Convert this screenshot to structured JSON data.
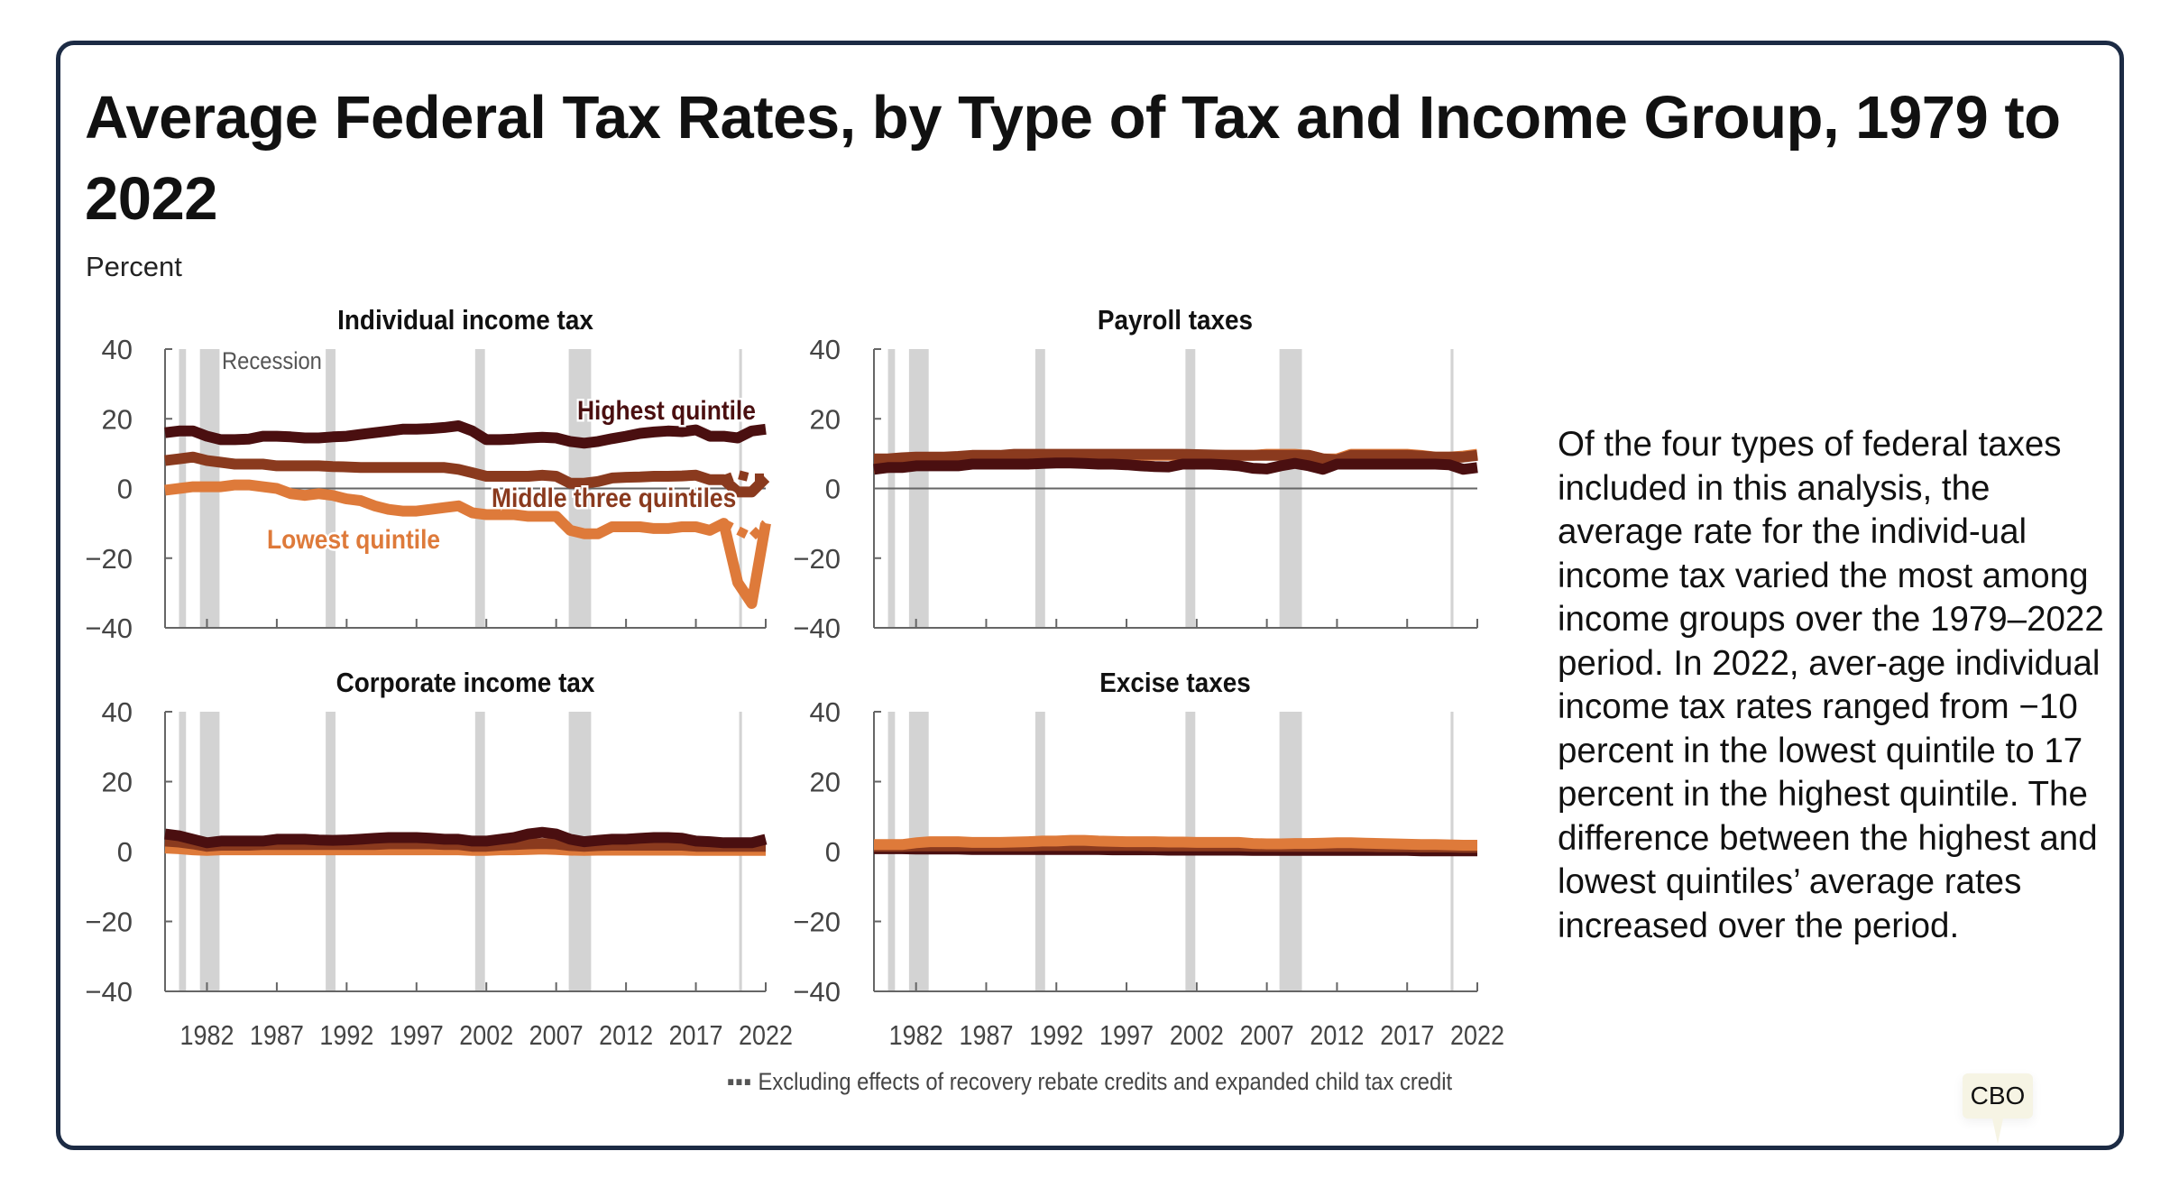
{
  "title": "Average Federal Tax Rates, by Type of Tax and Income Group, 1979 to 2022",
  "unit_label": "Percent",
  "recession_label": "Recession",
  "footnote_marker": "▪▪▪",
  "footnote": "Excluding effects of recovery rebate credits and expanded child tax credit",
  "side_text": "Of the four types of federal taxes included in this analysis, the average rate for the individ-ual income tax varied the most among income groups over the 1979–2022 period. In 2022, aver-age individual income tax rates ranged from −10 percent in the lowest quintile to 17 percent in the highest quintile. The difference between the highest and lowest quintiles’ average rates increased over the period.",
  "badge": "CBO",
  "colors": {
    "highest": "#4a0f10",
    "middle": "#8a3a1e",
    "lowest": "#de7a3a",
    "recession": "#d3d3d3",
    "axis": "#666666"
  },
  "chart_data": [
    {
      "type": "line",
      "title": "Individual income tax",
      "ylim": [
        -40,
        40
      ],
      "yticks": [
        "40",
        "20",
        "0",
        "−20",
        "−40"
      ],
      "xticks": [
        "1982",
        "1987",
        "1992",
        "1997",
        "2002",
        "2007",
        "2012",
        "2017",
        "2022"
      ],
      "x_start": 1979,
      "recessions": [
        [
          1980.0,
          1980.5
        ],
        [
          1981.5,
          1982.9
        ],
        [
          1990.5,
          1991.2
        ],
        [
          2001.2,
          2001.9
        ],
        [
          2007.9,
          2009.5
        ],
        [
          2020.1,
          2020.3
        ]
      ],
      "series": [
        {
          "name": "Lowest quintile",
          "key": "lowest",
          "values": [
            -0.5,
            0,
            0.5,
            0.5,
            0.5,
            1,
            1,
            0.5,
            0,
            -1.5,
            -2,
            -1.5,
            -2,
            -3,
            -3.5,
            -5,
            -6,
            -6.5,
            -6.5,
            -6,
            -5.5,
            -5,
            -7,
            -7.5,
            -7.5,
            -7.5,
            -8,
            -8,
            -8,
            -12,
            -13,
            -13,
            -11,
            -11,
            -11,
            -11.5,
            -11.5,
            -11,
            -11,
            -12,
            -10,
            -27,
            -33,
            -10
          ]
        },
        {
          "name": "Middle three quintiles",
          "key": "middle",
          "values": [
            8,
            8.5,
            9,
            8,
            7.5,
            7,
            7,
            7,
            6.5,
            6.5,
            6.5,
            6.5,
            6.3,
            6.2,
            6,
            6,
            6,
            6,
            6,
            6,
            6,
            5.5,
            4.5,
            3.5,
            3.5,
            3.5,
            3.5,
            3.8,
            3.5,
            1.5,
            1.5,
            2,
            3,
            3.2,
            3.3,
            3.5,
            3.5,
            3.6,
            3.8,
            2.5,
            2.5,
            -1,
            -1,
            3
          ]
        },
        {
          "name": "Highest quintile",
          "key": "highest",
          "values": [
            16,
            16.5,
            16.5,
            15,
            14,
            14,
            14.2,
            15,
            15,
            14.8,
            14.5,
            14.5,
            14.8,
            15,
            15.5,
            16,
            16.5,
            17,
            17,
            17.2,
            17.5,
            18,
            16.5,
            14,
            14,
            14.2,
            14.5,
            14.7,
            14.5,
            13.5,
            13,
            13.5,
            14.3,
            15,
            15.8,
            16.2,
            16.5,
            16.3,
            16.8,
            15,
            15,
            14.5,
            16.5,
            17
          ]
        }
      ],
      "excluding_series": [
        {
          "key": "middle",
          "years": [
            2019,
            2020,
            2021,
            2022
          ],
          "values": [
            2.5,
            4,
            3,
            3
          ]
        },
        {
          "key": "lowest",
          "years": [
            2019,
            2020,
            2021,
            2022
          ],
          "values": [
            -10,
            -12,
            -14,
            -10
          ]
        }
      ]
    },
    {
      "type": "line",
      "title": "Payroll taxes",
      "ylim": [
        -40,
        40
      ],
      "yticks": [
        "40",
        "20",
        "0",
        "−20",
        "−40"
      ],
      "xticks": [
        "1982",
        "1987",
        "1992",
        "1997",
        "2002",
        "2007",
        "2012",
        "2017",
        "2022"
      ],
      "x_start": 1979,
      "recessions": [
        [
          1980.0,
          1980.5
        ],
        [
          1981.5,
          1982.9
        ],
        [
          1990.5,
          1991.2
        ],
        [
          2001.2,
          2001.9
        ],
        [
          2007.9,
          2009.5
        ],
        [
          2020.1,
          2020.3
        ]
      ],
      "series": [
        {
          "key": "lowest",
          "values": [
            6,
            6,
            6.5,
            7,
            7,
            7.2,
            7.5,
            7.5,
            7.8,
            8,
            8,
            8.3,
            8.5,
            8.5,
            8.8,
            9,
            9,
            9.3,
            9.3,
            9.5,
            9.5,
            9.5,
            9.5,
            9.5,
            9.5,
            9.5,
            9.5,
            9.5,
            9.8,
            9.8,
            9.8,
            9.5,
            8.5,
            8.5,
            9.8,
            9.8,
            9.8,
            9.8,
            9.8,
            9.5,
            9,
            9,
            9.3,
            9.8
          ]
        },
        {
          "key": "middle",
          "values": [
            8.5,
            8.5,
            8.8,
            9,
            9,
            9,
            9.2,
            9.5,
            9.5,
            9.5,
            9.8,
            9.8,
            9.8,
            9.8,
            9.8,
            9.8,
            9.8,
            9.8,
            9.8,
            9.8,
            9.8,
            9.8,
            9.8,
            9.7,
            9.6,
            9.5,
            9.5,
            9.5,
            9.5,
            9.5,
            9.5,
            9.5,
            8.5,
            8.2,
            9.5,
            9.5,
            9.5,
            9.5,
            9.5,
            9.3,
            9,
            9,
            9,
            9.5
          ]
        },
        {
          "key": "highest",
          "values": [
            5.5,
            6,
            6,
            6.5,
            6.5,
            6.5,
            6.5,
            7,
            7,
            7,
            7,
            7,
            7.2,
            7.3,
            7.3,
            7.2,
            7,
            7,
            6.8,
            6.5,
            6.3,
            6.2,
            7,
            7,
            7,
            6.8,
            6.5,
            5.8,
            5.6,
            6.5,
            7.2,
            6.5,
            5.5,
            7,
            7,
            7,
            7,
            7,
            7,
            7,
            7,
            6.8,
            5.5,
            6
          ]
        }
      ]
    },
    {
      "type": "line",
      "title": "Corporate income tax",
      "ylim": [
        -40,
        40
      ],
      "yticks": [
        "40",
        "20",
        "0",
        "−20",
        "−40"
      ],
      "xticks": [
        "1982",
        "1987",
        "1992",
        "1997",
        "2002",
        "2007",
        "2012",
        "2017",
        "2022"
      ],
      "x_start": 1979,
      "recessions": [
        [
          1980.0,
          1980.5
        ],
        [
          1981.5,
          1982.9
        ],
        [
          1990.5,
          1991.2
        ],
        [
          2001.2,
          2001.9
        ],
        [
          2007.9,
          2009.5
        ],
        [
          2020.1,
          2020.3
        ]
      ],
      "series": [
        {
          "key": "lowest",
          "values": [
            1,
            0.8,
            0.5,
            0.3,
            0.5,
            0.5,
            0.5,
            0.5,
            0.5,
            0.5,
            0.5,
            0.5,
            0.5,
            0.5,
            0.5,
            0.5,
            0.5,
            0.5,
            0.5,
            0.5,
            0.5,
            0.5,
            0.3,
            0.3,
            0.5,
            0.5,
            0.6,
            0.7,
            0.6,
            0.4,
            0.3,
            0.4,
            0.4,
            0.4,
            0.4,
            0.4,
            0.4,
            0.4,
            0.3,
            0.3,
            0.3,
            0.3,
            0.3,
            0.3
          ]
        },
        {
          "key": "middle",
          "values": [
            3,
            2.7,
            2.2,
            1.5,
            1.8,
            1.8,
            1.8,
            2,
            2,
            2,
            2,
            2,
            2,
            2,
            2,
            2,
            2.2,
            2.2,
            2.2,
            2.2,
            2,
            2,
            1.5,
            1.5,
            1.8,
            2,
            2.2,
            2.3,
            2.2,
            1.7,
            1.5,
            1.7,
            1.8,
            1.8,
            1.8,
            1.8,
            1.8,
            1.8,
            1.5,
            1.5,
            1.5,
            1.5,
            1.5,
            1.5
          ]
        },
        {
          "key": "highest",
          "values": [
            5,
            4.5,
            3.5,
            2.5,
            3,
            3,
            3,
            3,
            3.5,
            3.5,
            3.5,
            3.3,
            3.2,
            3.3,
            3.5,
            3.8,
            4,
            4,
            4,
            3.8,
            3.5,
            3.5,
            3,
            3,
            3.5,
            4,
            5,
            5.5,
            5,
            3.5,
            2.8,
            3.2,
            3.5,
            3.5,
            3.8,
            4,
            4,
            3.8,
            3,
            2.8,
            2.5,
            2.5,
            2.5,
            3.5
          ]
        }
      ]
    },
    {
      "type": "line",
      "title": "Excise taxes",
      "ylim": [
        -40,
        40
      ],
      "yticks": [
        "40",
        "20",
        "0",
        "−20",
        "−40"
      ],
      "xticks": [
        "1982",
        "1987",
        "1992",
        "1997",
        "2002",
        "2007",
        "2012",
        "2017",
        "2022"
      ],
      "x_start": 1979,
      "recessions": [
        [
          1980.0,
          1980.5
        ],
        [
          1981.5,
          1982.9
        ],
        [
          1990.5,
          1991.2
        ],
        [
          2001.2,
          2001.9
        ],
        [
          2007.9,
          2009.5
        ],
        [
          2020.1,
          2020.3
        ]
      ],
      "series": [
        {
          "key": "highest",
          "values": [
            0.8,
            0.8,
            0.8,
            0.7,
            0.7,
            0.7,
            0.7,
            0.6,
            0.6,
            0.6,
            0.6,
            0.6,
            0.6,
            0.6,
            0.6,
            0.6,
            0.6,
            0.5,
            0.5,
            0.5,
            0.5,
            0.4,
            0.4,
            0.4,
            0.4,
            0.4,
            0.4,
            0.3,
            0.3,
            0.3,
            0.3,
            0.3,
            0.3,
            0.3,
            0.3,
            0.3,
            0.3,
            0.3,
            0.3,
            0.2,
            0.2,
            0.2,
            0.2,
            0.2
          ]
        },
        {
          "key": "middle",
          "values": [
            1.5,
            1.5,
            1.5,
            1.6,
            1.6,
            1.6,
            1.6,
            1.6,
            1.6,
            1.6,
            1.6,
            1.6,
            1.7,
            1.7,
            1.7,
            1.7,
            1.7,
            1.7,
            1.7,
            1.7,
            1.6,
            1.6,
            1.6,
            1.6,
            1.6,
            1.6,
            1.6,
            1.5,
            1.5,
            1.5,
            1.5,
            1.5,
            1.5,
            1.5,
            1.5,
            1.5,
            1.4,
            1.4,
            1.4,
            1.3,
            1.3,
            1.3,
            1.2,
            1.2
          ]
        },
        {
          "key": "lowest",
          "values": [
            2,
            2,
            2,
            2.5,
            2.8,
            2.8,
            2.8,
            2.6,
            2.6,
            2.6,
            2.7,
            2.8,
            3,
            3,
            3.2,
            3.2,
            3,
            2.9,
            2.8,
            2.8,
            2.8,
            2.7,
            2.7,
            2.6,
            2.6,
            2.6,
            2.6,
            2.3,
            2.2,
            2.2,
            2.3,
            2.3,
            2.4,
            2.5,
            2.5,
            2.4,
            2.3,
            2.2,
            2.1,
            2,
            2,
            1.9,
            1.8,
            1.8
          ]
        }
      ]
    }
  ]
}
